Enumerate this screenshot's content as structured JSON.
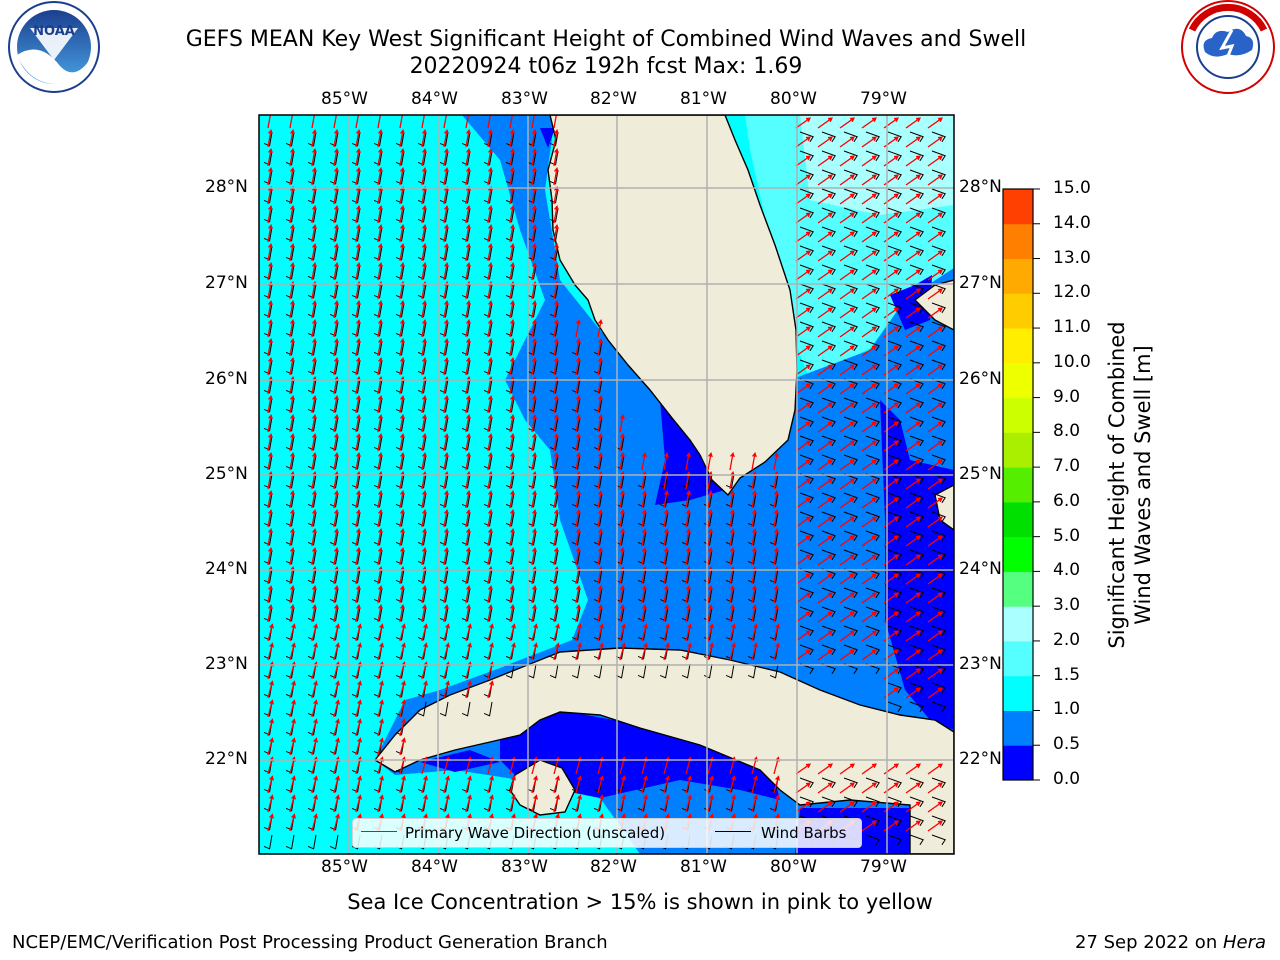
{
  "title": {
    "line1": "GEFS MEAN Key West Significant Height of Combined Wind Waves and Swell",
    "line2": "20220924 t06z 192h fcst   Max: 1.69"
  },
  "logos": {
    "left": "NOAA",
    "right": "NATIONAL WEATHER SERVICE"
  },
  "map": {
    "lon_labels": [
      "85°W",
      "84°W",
      "83°W",
      "82°W",
      "81°W",
      "80°W",
      "79°W"
    ],
    "lat_labels": [
      "28°N",
      "27°N",
      "26°N",
      "25°N",
      "24°N",
      "23°N",
      "22°N"
    ],
    "colors": {
      "land": "#efedda",
      "ocean_1_1p5": "#00ffff",
      "ocean_0p5_1": "#0080ff",
      "ocean_0_0p5": "#0000ff",
      "ocean_1p5_2": "#55ffff",
      "ocean_2_2p5": "#aaffff",
      "grid": "#b0b0b0"
    }
  },
  "legend": {
    "wave_label": "Primary Wave Direction (unscaled)",
    "barb_label": "Wind Barbs",
    "wave_color": "#ff0000",
    "barb_color": "#000000"
  },
  "colorbar": {
    "label_line1": "Significant Height of Combined",
    "label_line2": "Wind Waves and Swell [m]",
    "ticks": [
      "0.0",
      "0.5",
      "1.0",
      "1.5",
      "2.0",
      "3.0",
      "4.0",
      "5.0",
      "6.0",
      "7.0",
      "8.0",
      "9.0",
      "10.0",
      "11.0",
      "12.0",
      "13.0",
      "14.0",
      "15.0"
    ],
    "colors": [
      "#0000ff",
      "#0080ff",
      "#00ffff",
      "#55ffff",
      "#aaffff",
      "#55ff80",
      "#00ff00",
      "#00e000",
      "#55ee00",
      "#aaee00",
      "#ccff00",
      "#eeff00",
      "#ffee00",
      "#ffcc00",
      "#ffaa00",
      "#ff8000",
      "#ff4000"
    ]
  },
  "subnote": "Sea Ice Concentration > 15% is shown in pink to yellow",
  "footer": {
    "left": "NCEP/EMC/Verification Post Processing Product Generation Branch",
    "right_prefix": "27 Sep 2022 on ",
    "right_italic": "Hera"
  }
}
